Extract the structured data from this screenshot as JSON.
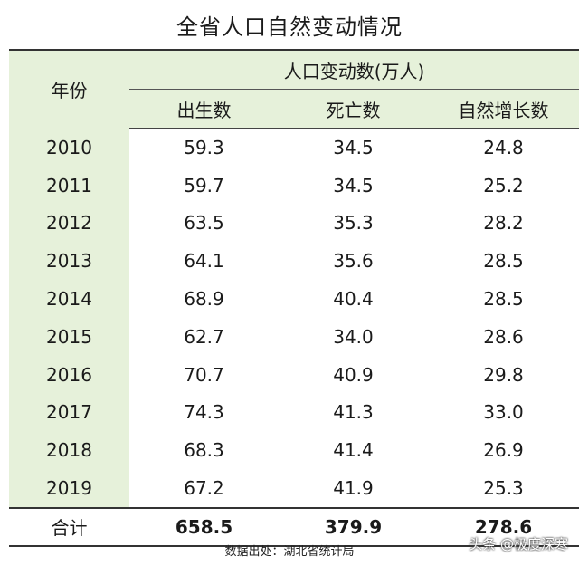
{
  "title": "全省人口自然变动情况",
  "headers": {
    "year": "年份",
    "group": "人口变动数(万人)",
    "births": "出生数",
    "deaths": "死亡数",
    "natural_growth": "自然增长数"
  },
  "rows": [
    {
      "year": "2010",
      "births": "59.3",
      "deaths": "34.5",
      "growth": "24.8"
    },
    {
      "year": "2011",
      "births": "59.7",
      "deaths": "34.5",
      "growth": "25.2"
    },
    {
      "year": "2012",
      "births": "63.5",
      "deaths": "35.3",
      "growth": "28.2"
    },
    {
      "year": "2013",
      "births": "64.1",
      "deaths": "35.6",
      "growth": "28.5"
    },
    {
      "year": "2014",
      "births": "68.9",
      "deaths": "40.4",
      "growth": "28.5"
    },
    {
      "year": "2015",
      "births": "62.7",
      "deaths": "34.0",
      "growth": "28.6"
    },
    {
      "year": "2016",
      "births": "70.7",
      "deaths": "40.9",
      "growth": "29.8"
    },
    {
      "year": "2017",
      "births": "74.3",
      "deaths": "41.3",
      "growth": "33.0"
    },
    {
      "year": "2018",
      "births": "68.3",
      "deaths": "41.4",
      "growth": "26.9"
    },
    {
      "year": "2019",
      "births": "67.2",
      "deaths": "41.9",
      "growth": "25.3"
    }
  ],
  "total": {
    "label": "合计",
    "births": "658.5",
    "deaths": "379.9",
    "growth": "278.6"
  },
  "source": "数据出处：湖北省统计局",
  "watermark": {
    "text": "头条 @极度深寒",
    "icon": "toutiao-logo-icon"
  },
  "colors": {
    "header_bg": "#e6f1da"
  }
}
